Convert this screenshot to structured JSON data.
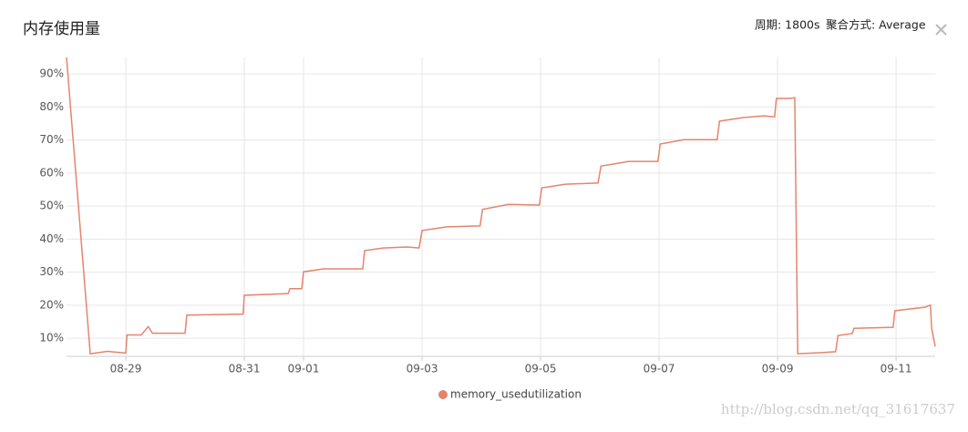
{
  "header": {
    "title": "内存使用量",
    "period": "周期: 1800s",
    "aggregation": "聚合方式: Average"
  },
  "chart_data": {
    "type": "line",
    "x": [
      0,
      0.4,
      0.69,
      1.0,
      1.02,
      1.26,
      1.38,
      1.45,
      2.0,
      2.03,
      2.98,
      3.0,
      3.74,
      3.77,
      3.97,
      4.0,
      4.34,
      5.0,
      5.03,
      5.34,
      5.75,
      5.95,
      6.0,
      6.42,
      6.98,
      7.02,
      7.46,
      7.98,
      8.02,
      8.42,
      8.97,
      9.02,
      9.49,
      9.98,
      10.02,
      10.42,
      10.98,
      11.02,
      11.42,
      11.77,
      11.95,
      11.98,
      12.2,
      12.29,
      12.34,
      12.72,
      12.98,
      13.02,
      13.26,
      13.29,
      13.95,
      13.98,
      14.49,
      14.58,
      14.6,
      14.66
    ],
    "series": [
      {
        "name": "memory_usedutilization",
        "color": "#e5846e",
        "values": [
          95,
          5.3,
          6,
          5.5,
          11,
          11,
          13.5,
          11.5,
          11.5,
          17,
          17.3,
          23,
          23.5,
          25,
          25,
          30.1,
          31,
          31,
          36.5,
          37.3,
          37.6,
          37.3,
          42.6,
          43.7,
          44,
          49,
          50.5,
          50.3,
          55.5,
          56.6,
          57,
          62.1,
          63.5,
          63.5,
          68.8,
          70.1,
          70.1,
          75.7,
          76.8,
          77.3,
          77,
          82.6,
          82.6,
          82.8,
          5.3,
          5.6,
          5.9,
          10.8,
          11.4,
          13,
          13.3,
          18.3,
          19.4,
          20,
          13,
          7.5
        ]
      }
    ],
    "xlim": [
      0,
      14.66
    ],
    "xticks": [
      {
        "value": 1,
        "label": "08-29"
      },
      {
        "value": 3,
        "label": "08-31"
      },
      {
        "value": 4,
        "label": "09-01"
      },
      {
        "value": 6,
        "label": "09-03"
      },
      {
        "value": 8,
        "label": "09-05"
      },
      {
        "value": 10,
        "label": "09-07"
      },
      {
        "value": 12,
        "label": "09-09"
      },
      {
        "value": 14,
        "label": "09-11"
      }
    ],
    "ylim": [
      4.5,
      95
    ],
    "yticks": [
      {
        "value": 10,
        "label": "10%"
      },
      {
        "value": 20,
        "label": "20%"
      },
      {
        "value": 30,
        "label": "30%"
      },
      {
        "value": 40,
        "label": "40%"
      },
      {
        "value": 50,
        "label": "50%"
      },
      {
        "value": 60,
        "label": "60%"
      },
      {
        "value": 70,
        "label": "70%"
      },
      {
        "value": 80,
        "label": "80%"
      },
      {
        "value": 90,
        "label": "90%"
      }
    ],
    "grid": true
  },
  "watermark": "http://blog.csdn.net/qq_31617637"
}
